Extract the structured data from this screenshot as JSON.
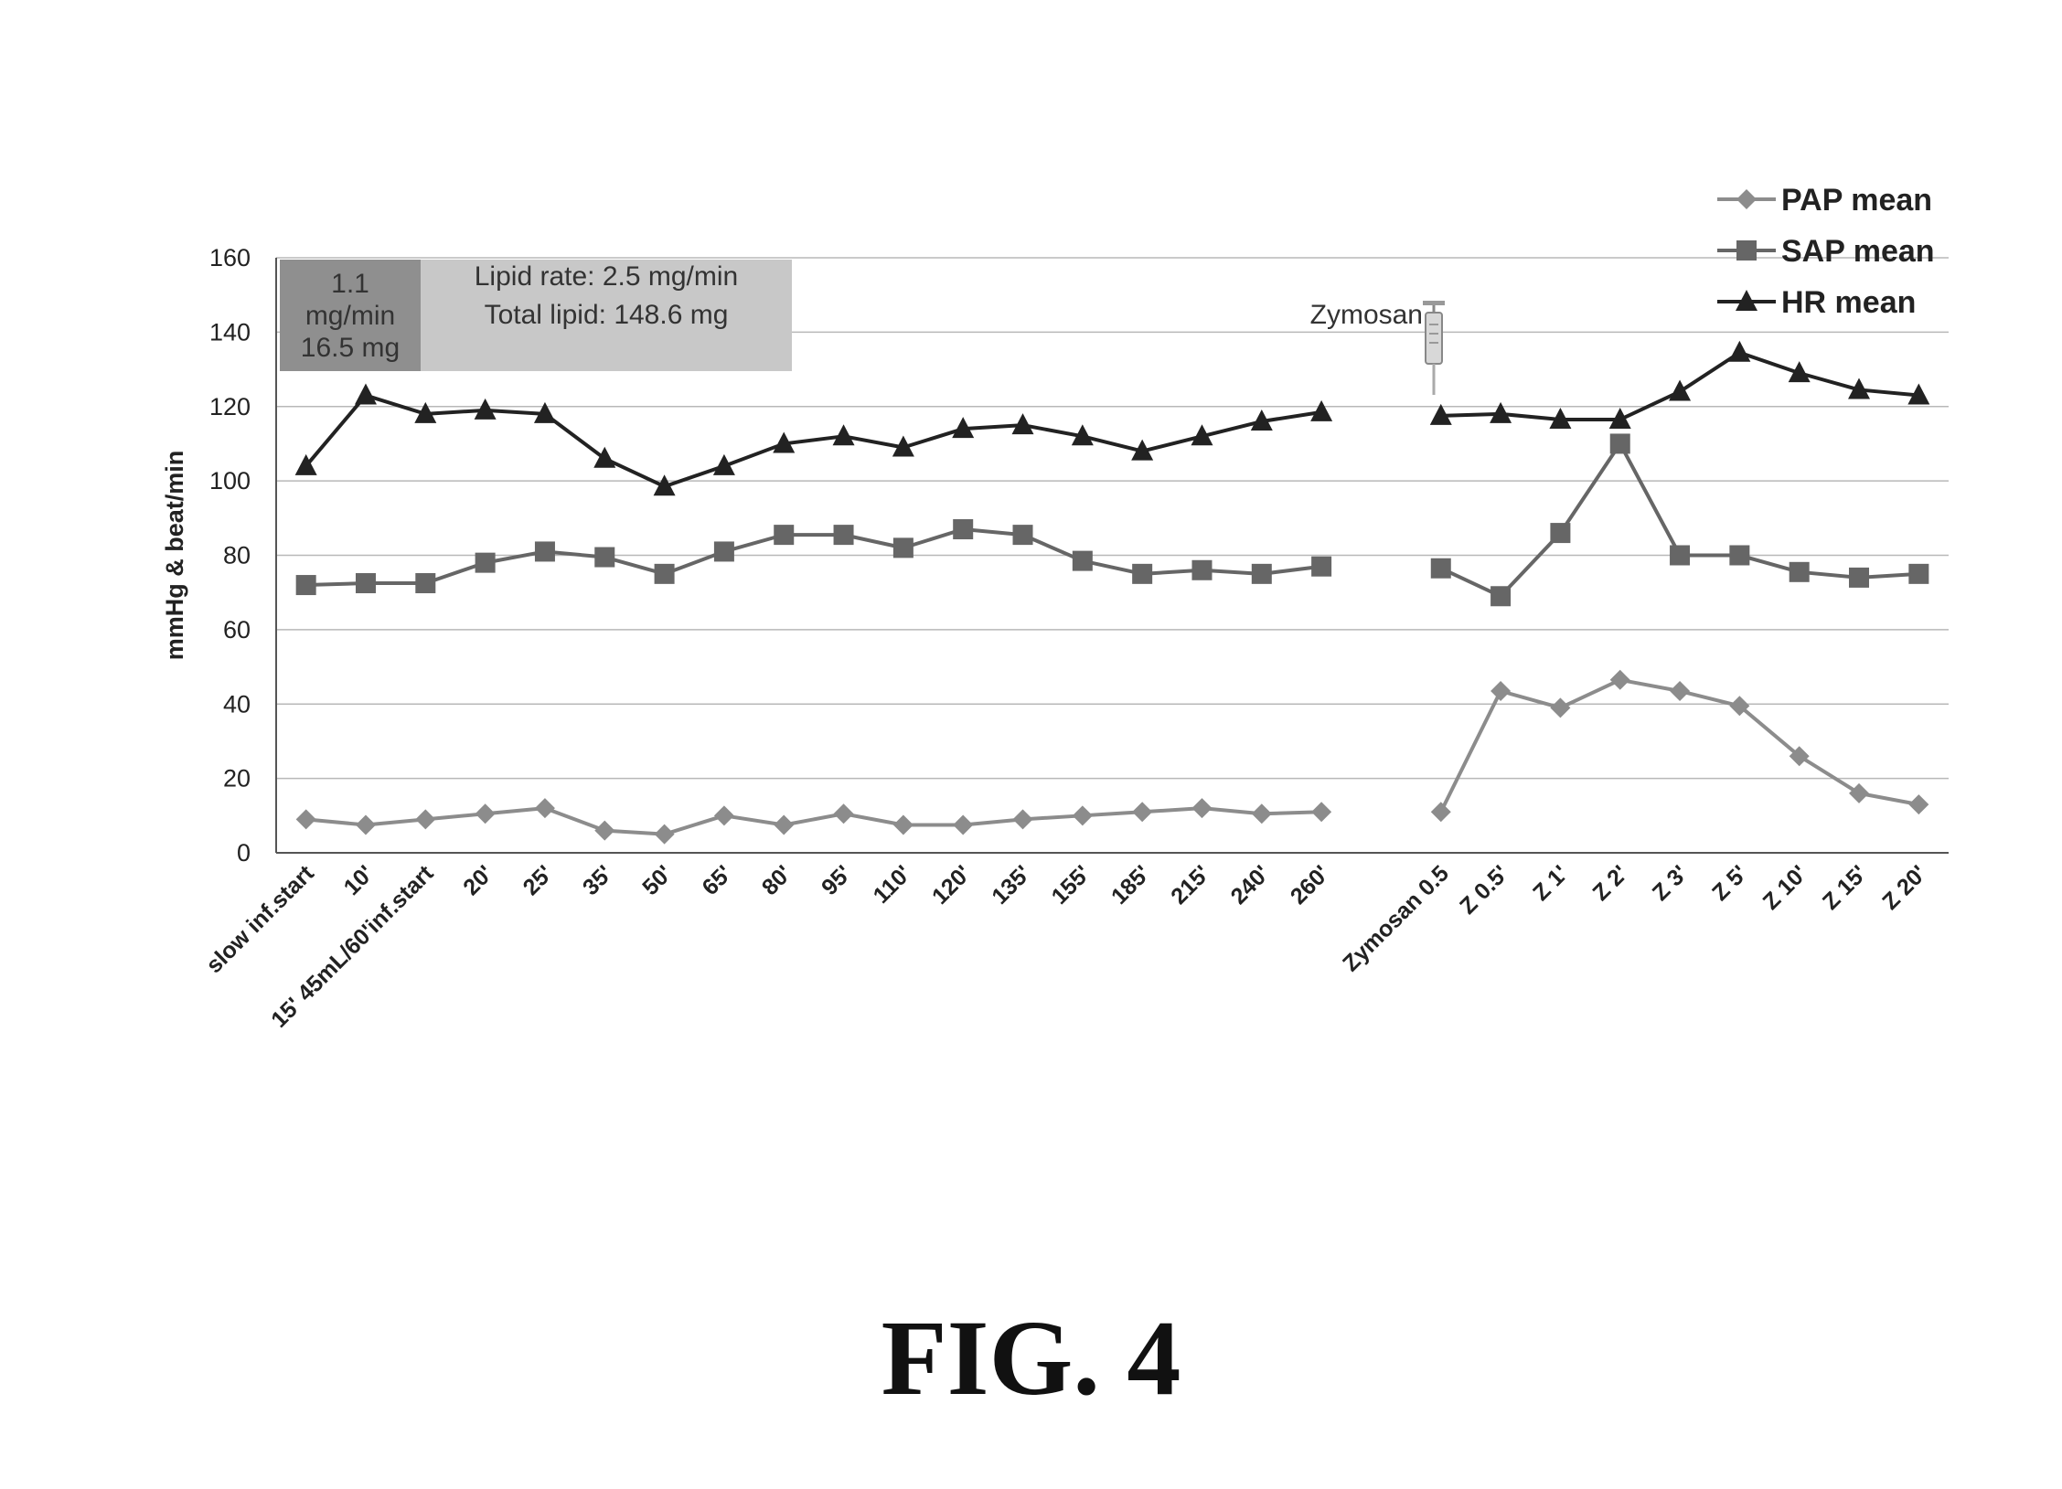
{
  "figure_caption": "FIG. 4",
  "chart_data": {
    "type": "line",
    "title": "",
    "ylabel": "mmHg & beat/min",
    "xlabel": "",
    "ylim": [
      0,
      160
    ],
    "yticks": [
      0,
      20,
      40,
      60,
      80,
      100,
      120,
      140,
      160
    ],
    "grid": true,
    "legend_position": "top-right",
    "categories": [
      "slow inf.start",
      "10'",
      "15' 45mL/60'inf.start",
      "20'",
      "25'",
      "35'",
      "50'",
      "65'",
      "80'",
      "95'",
      "110'",
      "120'",
      "135'",
      "155'",
      "185'",
      "215'",
      "240'",
      "260'",
      "",
      "Zymosan 0.5",
      "Z 0.5'",
      "Z 1'",
      "Z 2'",
      "Z 3'",
      "Z 5'",
      "Z 10'",
      "Z 15'",
      "Z 20'"
    ],
    "series": [
      {
        "name": "PAP mean",
        "color": "#8c8c8c",
        "marker": "diamond",
        "values": [
          9,
          7.5,
          9,
          10.5,
          12,
          6,
          5,
          10,
          7.5,
          10.5,
          7.5,
          7.5,
          9,
          10,
          11,
          12,
          10.5,
          11,
          null,
          11,
          43.5,
          39,
          46.5,
          43.5,
          39.5,
          26,
          16,
          13
        ]
      },
      {
        "name": "SAP mean",
        "color": "#666666",
        "marker": "square",
        "values": [
          72,
          72.5,
          72.5,
          78,
          81,
          79.5,
          75,
          81,
          85.5,
          85.5,
          82,
          87,
          85.5,
          78.5,
          75,
          76,
          75,
          77,
          null,
          76.5,
          69,
          86,
          110,
          80,
          80,
          75.5,
          74,
          75
        ]
      },
      {
        "name": "HR mean",
        "color": "#222222",
        "marker": "triangle",
        "values": [
          104,
          123,
          118,
          119,
          118,
          106,
          98.5,
          104,
          110,
          112,
          109,
          114,
          115,
          112,
          108,
          112,
          116,
          118.5,
          null,
          117.5,
          118,
          116.5,
          116.5,
          124,
          134.5,
          129,
          124.5,
          123
        ]
      }
    ],
    "annotations": {
      "box1_lines": [
        "1.1",
        "mg/min",
        "16.5 mg"
      ],
      "box2_lines": [
        "Lipid rate: 2.5 mg/min",
        "Total lipid: 148.6 mg"
      ],
      "zymosan_label": "Zymosan"
    }
  }
}
